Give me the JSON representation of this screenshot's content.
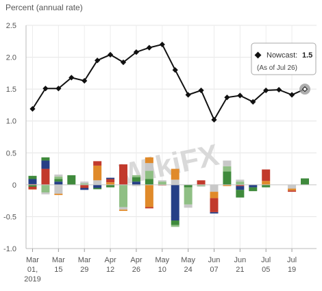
{
  "chart_data": {
    "type": "bar",
    "ylabel": "Percent (annual rate)",
    "ylim": [
      -1.0,
      2.5
    ],
    "yticks": [
      "2.5",
      "2.0",
      "1.5",
      "1.0",
      "0.5",
      "0",
      "-0.5",
      "-1.0"
    ],
    "ytick_values": [
      2.5,
      2.0,
      1.5,
      1.0,
      0.5,
      0.0,
      -0.5,
      -1.0
    ],
    "xtick_labels": [
      {
        "line1": "Mar",
        "line2": "01,",
        "line3": "2019"
      },
      {
        "line1": "Mar",
        "line2": "15",
        "line3": ""
      },
      {
        "line1": "Mar",
        "line2": "29",
        "line3": ""
      },
      {
        "line1": "Apr",
        "line2": "12",
        "line3": ""
      },
      {
        "line1": "Apr",
        "line2": "26",
        "line3": ""
      },
      {
        "line1": "May",
        "line2": "10",
        "line3": ""
      },
      {
        "line1": "May",
        "line2": "24",
        "line3": ""
      },
      {
        "line1": "Jun",
        "line2": "07",
        "line3": ""
      },
      {
        "line1": "Jun",
        "line2": "21",
        "line3": ""
      },
      {
        "line1": "Jul",
        "line2": "05",
        "line3": ""
      },
      {
        "line1": "Jul",
        "line2": "19",
        "line3": ""
      }
    ],
    "nowcast_line": [
      1.19,
      1.51,
      1.51,
      1.68,
      1.63,
      1.95,
      2.04,
      1.92,
      2.08,
      2.15,
      2.2,
      1.8,
      1.41,
      1.48,
      1.02,
      1.37,
      1.4,
      1.3,
      1.48,
      1.49,
      1.41,
      1.5
    ],
    "component_colors": [
      "#e08a2a",
      "#c23a2c",
      "#263f86",
      "#3f8a3c",
      "#8fbf84",
      "#c8c8c8"
    ],
    "bars": [
      [
        [
          -0.07,
          0.08,
          0.08,
          0.05
        ],
        [
          -0.03
        ]
      ],
      [
        [
          0.25,
          0.13,
          0.05
        ],
        [
          -0.12,
          -0.03
        ]
      ],
      [
        [
          0.05,
          0.04,
          0.04,
          0.03
        ],
        [
          -0.14,
          -0.02
        ]
      ],
      [
        [
          0.15
        ],
        []
      ],
      [
        [
          0.02,
          0.03
        ],
        [
          -0.05,
          -0.03
        ]
      ],
      [
        [
          0.07,
          0.23,
          0.07
        ],
        [
          -0.05,
          -0.02
        ]
      ],
      [
        [
          0.04,
          0.05,
          0.02
        ],
        [
          -0.04
        ]
      ],
      [
        [
          0.32
        ],
        [
          -0.35,
          -0.04,
          -0.02
        ]
      ],
      [
        [
          0.05,
          0.07,
          0.03
        ],
        [
          -0.02
        ]
      ],
      [
        [
          0.09,
          0.13,
          0.12,
          0.09
        ],
        [
          -0.35,
          -0.02
        ]
      ],
      [
        [
          0.05,
          0.02
        ],
        [
          -0.01
        ]
      ],
      [
        [
          0.08,
          0.17
        ],
        [
          -0.56,
          -0.07,
          -0.03
        ]
      ],
      [
        [],
        [
          -0.04,
          -0.27,
          -0.05
        ]
      ],
      [
        [
          0.07
        ],
        [
          -0.02,
          -0.01
        ]
      ],
      [
        [],
        [
          -0.11,
          -0.1,
          -0.22,
          -0.02
        ]
      ],
      [
        [
          0.21,
          0.08,
          0.09
        ],
        [
          -0.02
        ]
      ],
      [
        [
          0.05,
          0.03
        ],
        [
          -0.02,
          -0.06,
          -0.12
        ]
      ],
      [
        [],
        [
          -0.04,
          -0.06
        ]
      ],
      [
        [
          0.06,
          0.18
        ],
        [
          -0.04
        ]
      ],
      [
        [],
        []
      ],
      [
        [],
        [
          -0.06,
          -0.03,
          -0.02
        ]
      ],
      [
        [
          0.1
        ],
        []
      ]
    ],
    "tooltip": {
      "label": "Nowcast:",
      "value": "1.5",
      "sub": "(As of Jul 26)"
    },
    "watermark": "WikiFX",
    "grid": true
  }
}
